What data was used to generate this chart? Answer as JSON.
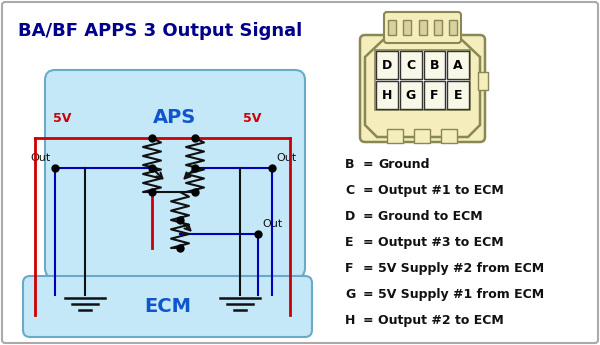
{
  "title": "BA/BF APPS 3 Output Signal",
  "title_color": "#00008B",
  "title_fontsize": 13,
  "bg_color": "#ffffff",
  "aps_color": "#c5e8f8",
  "aps_edge": "#6aaac8",
  "ecm_color": "#c5e8f8",
  "ecm_edge": "#6aaac8",
  "red_color": "#cc0000",
  "blue_color": "#0000bb",
  "black_color": "#111111",
  "conn_fill": "#f5edbb",
  "conn_edge": "#888855",
  "legend_entries": [
    [
      "B",
      "Ground"
    ],
    [
      "C",
      "Output #1 to ECM"
    ],
    [
      "D",
      "Ground to ECM"
    ],
    [
      "E",
      "Output #3 to ECM"
    ],
    [
      "F",
      "5V Supply #2 from ECM"
    ],
    [
      "G",
      "5V Supply #1 from ECM"
    ],
    [
      "H",
      "Output #2 to ECM"
    ]
  ],
  "connector_pins": [
    [
      "D",
      "C",
      "B",
      "A"
    ],
    [
      "H",
      "G",
      "F",
      "E"
    ]
  ]
}
